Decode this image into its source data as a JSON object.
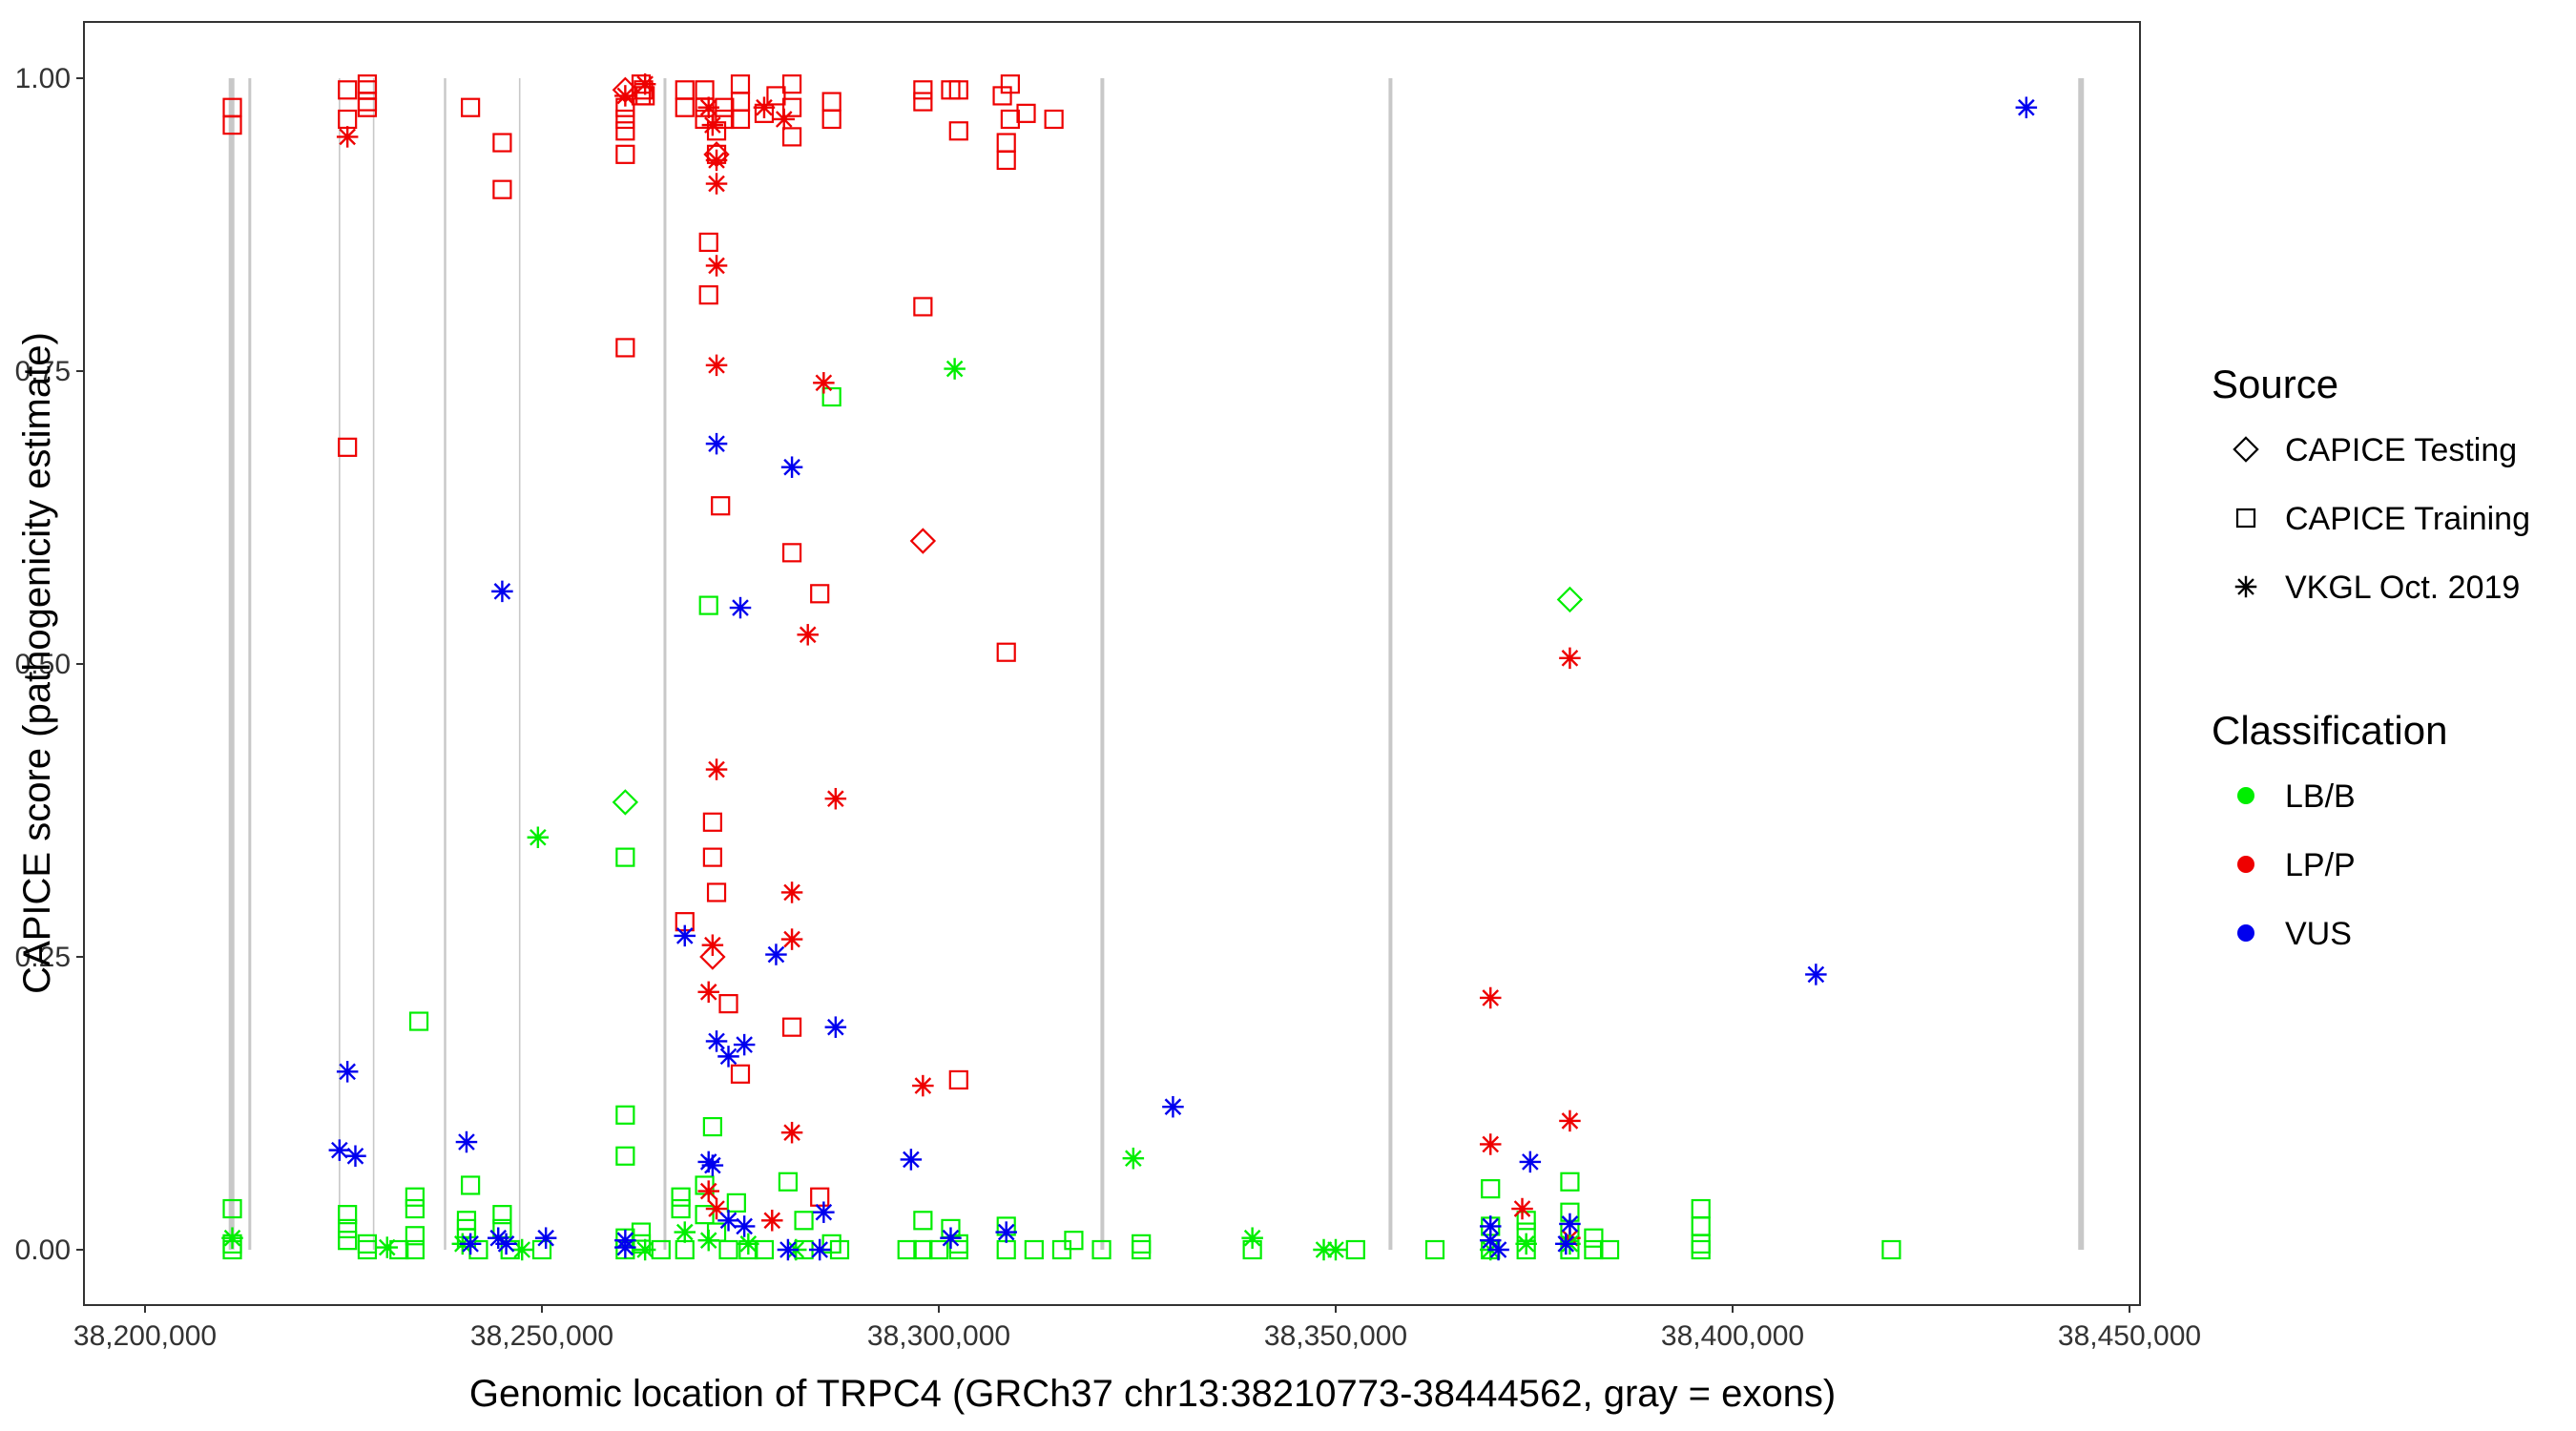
{
  "chart_data": {
    "type": "scatter",
    "title": "",
    "xlabel": "Genomic location of TRPC4 (GRCh37 chr13:38210773-38444562, gray = exons)",
    "ylabel": "CAPICE score (pathogenicity estimate)",
    "xlim": [
      38200000,
      38450000
    ],
    "ylim": [
      -0.05,
      1.05
    ],
    "x_ticks": [
      38200000,
      38250000,
      38300000,
      38350000,
      38400000,
      38450000
    ],
    "x_tick_labels": [
      "38,200,000",
      "38,250,000",
      "38,300,000",
      "38,350,000",
      "38,400,000",
      "38,450,000"
    ],
    "y_ticks": [
      0,
      0.25,
      0.5,
      0.75,
      1.0
    ],
    "y_tick_labels": [
      "0.00",
      "0.25",
      "0.50",
      "0.75",
      "1.00"
    ],
    "grid": false,
    "legend_position": "right",
    "exons": [
      {
        "x": 38210900,
        "w": 3
      },
      {
        "x": 38213200,
        "w": 1.5
      },
      {
        "x": 38224500,
        "w": 0.8
      },
      {
        "x": 38228800,
        "w": 0.8
      },
      {
        "x": 38237800,
        "w": 1.2
      },
      {
        "x": 38247200,
        "w": 0.8
      },
      {
        "x": 38265500,
        "w": 1.5
      },
      {
        "x": 38320600,
        "w": 2
      },
      {
        "x": 38356900,
        "w": 2
      },
      {
        "x": 38443900,
        "w": 3
      }
    ],
    "legend_source": {
      "title": "Source",
      "items": [
        {
          "label": "CAPICE Testing",
          "shape": "diamond"
        },
        {
          "label": "CAPICE Training",
          "shape": "square"
        },
        {
          "label": "VKGL Oct. 2019",
          "shape": "asterisk"
        }
      ]
    },
    "legend_class": {
      "title": "Classification",
      "items": [
        {
          "label": "LB/B",
          "color": "#00ee00"
        },
        {
          "label": "LP/P",
          "color": "#ee0000"
        },
        {
          "label": "VUS",
          "color": "#0000ee"
        }
      ]
    },
    "series": [
      {
        "source": "CAPICE Training",
        "classification": "LP/P",
        "points": [
          [
            38211000,
            0.975
          ],
          [
            38211000,
            0.96
          ],
          [
            38225500,
            0.99
          ],
          [
            38225500,
            0.965
          ],
          [
            38225500,
            0.685
          ],
          [
            38228000,
            0.99
          ],
          [
            38228000,
            0.98
          ],
          [
            38228000,
            0.975
          ],
          [
            38228000,
            0.995
          ],
          [
            38241000,
            0.975
          ],
          [
            38245000,
            0.945
          ],
          [
            38245000,
            0.905
          ],
          [
            38260500,
            0.975
          ],
          [
            38260500,
            0.965
          ],
          [
            38260500,
            0.955
          ],
          [
            38260500,
            0.935
          ],
          [
            38260500,
            0.77
          ],
          [
            38262500,
            0.995
          ],
          [
            38262500,
            0.985
          ],
          [
            38262800,
            0.99
          ],
          [
            38263000,
            0.985
          ],
          [
            38268000,
            0.99
          ],
          [
            38268000,
            0.975
          ],
          [
            38270500,
            0.99
          ],
          [
            38270500,
            0.975
          ],
          [
            38270500,
            0.965
          ],
          [
            38271000,
            0.86
          ],
          [
            38271000,
            0.815
          ],
          [
            38272000,
            0.955
          ],
          [
            38272000,
            0.935
          ],
          [
            38273000,
            0.975
          ],
          [
            38273000,
            0.965
          ],
          [
            38275000,
            0.995
          ],
          [
            38275000,
            0.98
          ],
          [
            38275000,
            0.965
          ],
          [
            38278000,
            0.97
          ],
          [
            38279500,
            0.985
          ],
          [
            38281500,
            0.995
          ],
          [
            38281500,
            0.975
          ],
          [
            38281500,
            0.95
          ],
          [
            38286500,
            0.98
          ],
          [
            38286500,
            0.965
          ],
          [
            38298000,
            0.99
          ],
          [
            38298000,
            0.98
          ],
          [
            38298000,
            0.805
          ],
          [
            38301500,
            0.99
          ],
          [
            38302500,
            0.99
          ],
          [
            38302500,
            0.955
          ],
          [
            38308000,
            0.985
          ],
          [
            38308500,
            0.945
          ],
          [
            38308500,
            0.93
          ],
          [
            38309000,
            0.995
          ],
          [
            38309000,
            0.965
          ],
          [
            38311000,
            0.97
          ],
          [
            38314500,
            0.965
          ],
          [
            38272500,
            0.635
          ],
          [
            38281500,
            0.595
          ],
          [
            38285000,
            0.56
          ],
          [
            38308500,
            0.51
          ],
          [
            38271500,
            0.365
          ],
          [
            38271500,
            0.335
          ],
          [
            38272000,
            0.305
          ],
          [
            38268000,
            0.28
          ],
          [
            38273500,
            0.21
          ],
          [
            38281500,
            0.19
          ],
          [
            38275000,
            0.15
          ],
          [
            38302500,
            0.145
          ],
          [
            38285000,
            0.045
          ]
        ]
      },
      {
        "source": "CAPICE Training",
        "classification": "LB/B",
        "points": [
          [
            38211000,
            0.035
          ],
          [
            38211000,
            0.005
          ],
          [
            38211000,
            0.0
          ],
          [
            38225500,
            0.03
          ],
          [
            38225500,
            0.018
          ],
          [
            38225500,
            0.008
          ],
          [
            38228000,
            0.005
          ],
          [
            38228000,
            0.0
          ],
          [
            38232000,
            0.0
          ],
          [
            38234000,
            0.045
          ],
          [
            38234000,
            0.035
          ],
          [
            38234000,
            0.012
          ],
          [
            38234000,
            0.0
          ],
          [
            38234500,
            0.195
          ],
          [
            38240500,
            0.025
          ],
          [
            38240500,
            0.018
          ],
          [
            38240500,
            0.01
          ],
          [
            38241000,
            0.055
          ],
          [
            38242000,
            0.0
          ],
          [
            38245000,
            0.03
          ],
          [
            38245000,
            0.018
          ],
          [
            38246000,
            0.0
          ],
          [
            38250000,
            0.0
          ],
          [
            38260500,
            0.335
          ],
          [
            38260500,
            0.115
          ],
          [
            38260500,
            0.08
          ],
          [
            38260500,
            0.01
          ],
          [
            38260500,
            0.0
          ],
          [
            38262500,
            0.015
          ],
          [
            38262500,
            0.005
          ],
          [
            38265000,
            0.0
          ],
          [
            38267500,
            0.045
          ],
          [
            38267500,
            0.035
          ],
          [
            38268000,
            0.0
          ],
          [
            38270500,
            0.055
          ],
          [
            38270500,
            0.03
          ],
          [
            38271000,
            0.55
          ],
          [
            38271500,
            0.105
          ],
          [
            38272000,
            0.015
          ],
          [
            38273500,
            0.0
          ],
          [
            38274500,
            0.04
          ],
          [
            38276000,
            0.0
          ],
          [
            38278000,
            0.0
          ],
          [
            38281000,
            0.058
          ],
          [
            38283000,
            0.025
          ],
          [
            38283000,
            0.0
          ],
          [
            38286500,
            0.728
          ],
          [
            38286500,
            0.005
          ],
          [
            38287500,
            0.0
          ],
          [
            38296000,
            0.0
          ],
          [
            38298000,
            0.025
          ],
          [
            38298000,
            0.0
          ],
          [
            38300000,
            0.0
          ],
          [
            38301500,
            0.018
          ],
          [
            38302500,
            0.005
          ],
          [
            38302500,
            0.0
          ],
          [
            38308500,
            0.02
          ],
          [
            38308500,
            0.0
          ],
          [
            38312000,
            0.0
          ],
          [
            38315500,
            0.0
          ],
          [
            38317000,
            0.008
          ],
          [
            38320500,
            0.0
          ],
          [
            38325500,
            0.005
          ],
          [
            38325500,
            0.0
          ],
          [
            38339500,
            0.0
          ],
          [
            38352500,
            0.0
          ],
          [
            38362500,
            0.0
          ],
          [
            38369500,
            0.052
          ],
          [
            38369500,
            0.02
          ],
          [
            38369500,
            0.0
          ],
          [
            38374000,
            0.025
          ],
          [
            38374000,
            0.015
          ],
          [
            38374000,
            0.0
          ],
          [
            38379500,
            0.058
          ],
          [
            38379500,
            0.032
          ],
          [
            38379500,
            0.015
          ],
          [
            38379500,
            0.0
          ],
          [
            38382500,
            0.01
          ],
          [
            38382500,
            0.0
          ],
          [
            38384500,
            0.0
          ],
          [
            38396000,
            0.035
          ],
          [
            38396000,
            0.02
          ],
          [
            38396000,
            0.005
          ],
          [
            38396000,
            0.0
          ],
          [
            38420000,
            0.0
          ]
        ]
      },
      {
        "source": "CAPICE Testing",
        "classification": "LP/P",
        "points": [
          [
            38260500,
            0.99
          ],
          [
            38271500,
            0.25
          ],
          [
            38298000,
            0.605
          ],
          [
            38272000,
            0.935
          ]
        ]
      },
      {
        "source": "CAPICE Testing",
        "classification": "LB/B",
        "points": [
          [
            38260500,
            0.382
          ],
          [
            38379500,
            0.555
          ]
        ]
      },
      {
        "source": "VKGL Oct. 2019",
        "classification": "LP/P",
        "points": [
          [
            38225500,
            0.95
          ],
          [
            38260500,
            0.985
          ],
          [
            38263000,
            0.995
          ],
          [
            38271000,
            0.975
          ],
          [
            38271500,
            0.96
          ],
          [
            38272000,
            0.93
          ],
          [
            38272000,
            0.91
          ],
          [
            38272000,
            0.84
          ],
          [
            38272000,
            0.755
          ],
          [
            38278000,
            0.975
          ],
          [
            38280500,
            0.965
          ],
          [
            38285500,
            0.74
          ],
          [
            38283500,
            0.525
          ],
          [
            38272000,
            0.41
          ],
          [
            38287000,
            0.385
          ],
          [
            38281500,
            0.305
          ],
          [
            38281500,
            0.265
          ],
          [
            38271500,
            0.26
          ],
          [
            38271000,
            0.22
          ],
          [
            38281500,
            0.1
          ],
          [
            38298000,
            0.14
          ],
          [
            38271000,
            0.05
          ],
          [
            38272000,
            0.035
          ],
          [
            38279000,
            0.025
          ],
          [
            38369500,
            0.215
          ],
          [
            38369500,
            0.09
          ],
          [
            38373500,
            0.035
          ],
          [
            38379500,
            0.505
          ],
          [
            38379500,
            0.11
          ],
          [
            38379500,
            0.01
          ]
        ]
      },
      {
        "source": "VKGL Oct. 2019",
        "classification": "LB/B",
        "points": [
          [
            38211000,
            0.01
          ],
          [
            38230500,
            0.002
          ],
          [
            38240000,
            0.005
          ],
          [
            38247500,
            0.0
          ],
          [
            38249500,
            0.352
          ],
          [
            38263000,
            0.0
          ],
          [
            38268000,
            0.015
          ],
          [
            38271000,
            0.008
          ],
          [
            38276000,
            0.005
          ],
          [
            38282000,
            0.0
          ],
          [
            38302000,
            0.752
          ],
          [
            38324500,
            0.078
          ],
          [
            38339500,
            0.01
          ],
          [
            38348500,
            0.0
          ],
          [
            38350000,
            0.0
          ],
          [
            38369500,
            0.0
          ],
          [
            38374000,
            0.005
          ],
          [
            38379500,
            0.005
          ]
        ]
      },
      {
        "source": "VKGL Oct. 2019",
        "classification": "VUS",
        "points": [
          [
            38225500,
            0.152
          ],
          [
            38224500,
            0.085
          ],
          [
            38226500,
            0.08
          ],
          [
            38240500,
            0.092
          ],
          [
            38245000,
            0.562
          ],
          [
            38241000,
            0.005
          ],
          [
            38244500,
            0.01
          ],
          [
            38245500,
            0.005
          ],
          [
            38250500,
            0.01
          ],
          [
            38260500,
            0.008
          ],
          [
            38260500,
            0.002
          ],
          [
            38268000,
            0.268
          ],
          [
            38271000,
            0.075
          ],
          [
            38271500,
            0.072
          ],
          [
            38272000,
            0.688
          ],
          [
            38272000,
            0.178
          ],
          [
            38273500,
            0.165
          ],
          [
            38275500,
            0.175
          ],
          [
            38275000,
            0.548
          ],
          [
            38273500,
            0.025
          ],
          [
            38275500,
            0.02
          ],
          [
            38279500,
            0.252
          ],
          [
            38281500,
            0.668
          ],
          [
            38281000,
            0.0
          ],
          [
            38285000,
            0.0
          ],
          [
            38285500,
            0.032
          ],
          [
            38287000,
            0.19
          ],
          [
            38296500,
            0.077
          ],
          [
            38301500,
            0.01
          ],
          [
            38308500,
            0.015
          ],
          [
            38329500,
            0.122
          ],
          [
            38369500,
            0.02
          ],
          [
            38369500,
            0.008
          ],
          [
            38370500,
            0.0
          ],
          [
            38374500,
            0.075
          ],
          [
            38379500,
            0.022
          ],
          [
            38379000,
            0.005
          ],
          [
            38410500,
            0.235
          ],
          [
            38437000,
            0.975
          ]
        ]
      }
    ]
  }
}
